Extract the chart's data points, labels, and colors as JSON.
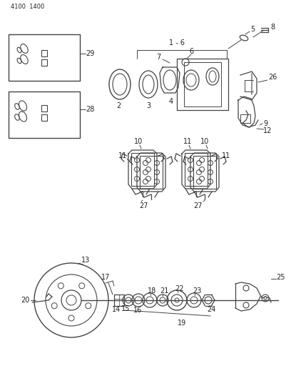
{
  "bg_color": "#ffffff",
  "line_color": "#444444",
  "text_color": "#222222",
  "header_text": "4100  1400",
  "fig_width": 4.08,
  "fig_height": 5.33,
  "dpi": 100
}
